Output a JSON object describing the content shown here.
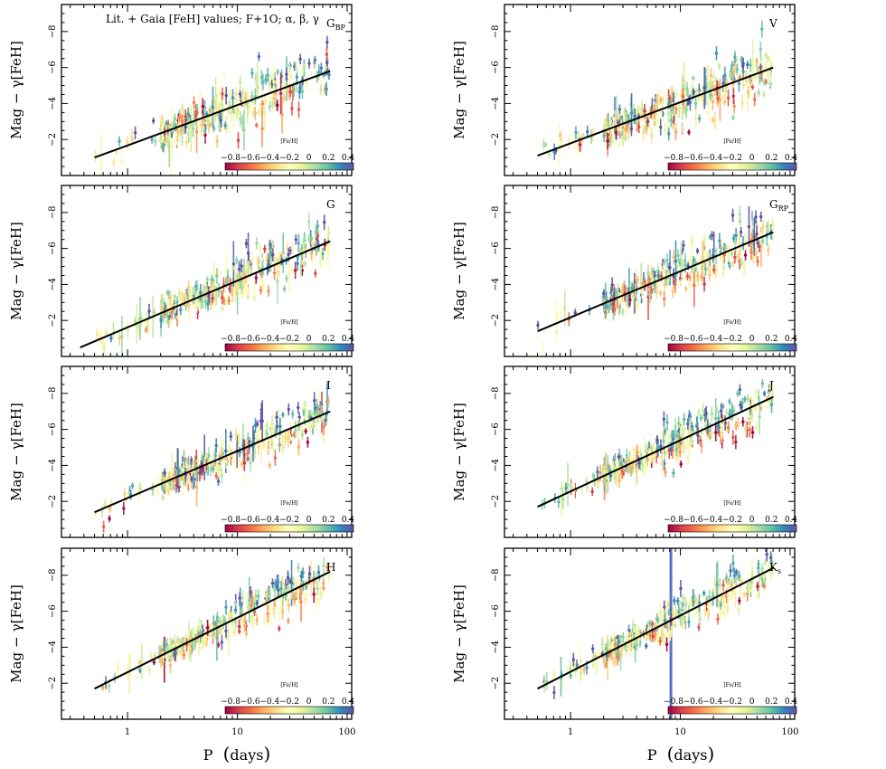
{
  "figure_title": "Lit. + Gaia [FeH] values; F+1O;  α,  β,  γ",
  "xlabel_main": "P",
  "xlabel_unit": "days",
  "ylabel_left": "Mag",
  "ylabel_minus": "−",
  "ylabel_right": "γ[FeH]",
  "colorbar": {
    "label": "[Fe/H]",
    "ticks": [
      "−0.8",
      "−0.6",
      "−0.4",
      "−0.2",
      "0",
      "0.2",
      "0.4"
    ],
    "stops": [
      "#9e0142",
      "#d53e4f",
      "#f46d43",
      "#fdae61",
      "#fee08b",
      "#ffffbf",
      "#e6f598",
      "#abdda4",
      "#66c2a5",
      "#3288bd",
      "#5e4fa2"
    ]
  },
  "chart_data": [
    {
      "type": "scatter",
      "band": "G",
      "sub": "BP",
      "xscale": "log",
      "xlim": [
        0.25,
        110
      ],
      "ylim": [
        0,
        9.5
      ],
      "yaxis_inverted": true,
      "yticks": [
        2,
        4,
        6,
        8
      ],
      "ytick_labels": [
        "−2",
        "−4",
        "−6",
        "−8"
      ],
      "xticks": [
        1,
        10,
        100
      ],
      "xtick_labels": [
        "1",
        "10",
        "100"
      ],
      "fit": {
        "x": [
          0.5,
          70
        ],
        "y": [
          1.0,
          5.8
        ]
      },
      "scatter": 0.55
    },
    {
      "type": "scatter",
      "band": "V",
      "sub": "",
      "xscale": "log",
      "xlim": [
        0.25,
        110
      ],
      "ylim": [
        0,
        9.5
      ],
      "yaxis_inverted": true,
      "yticks": [
        2,
        4,
        6,
        8
      ],
      "ytick_labels": [
        "−2",
        "−4",
        "−6",
        "−8"
      ],
      "xticks": [
        1,
        10,
        100
      ],
      "xtick_labels": [
        "1",
        "10",
        "100"
      ],
      "fit": {
        "x": [
          0.5,
          70
        ],
        "y": [
          1.1,
          6.0
        ]
      },
      "scatter": 0.55
    },
    {
      "type": "scatter",
      "band": "G",
      "sub": "",
      "xscale": "log",
      "xlim": [
        0.25,
        110
      ],
      "ylim": [
        0,
        9.5
      ],
      "yaxis_inverted": true,
      "yticks": [
        2,
        4,
        6,
        8
      ],
      "ytick_labels": [
        "−2",
        "−4",
        "−6",
        "−8"
      ],
      "xticks": [
        1,
        10,
        100
      ],
      "xtick_labels": [
        "1",
        "10",
        "100"
      ],
      "fit": {
        "x": [
          0.37,
          70
        ],
        "y": [
          0.5,
          6.4
        ]
      },
      "scatter": 0.5
    },
    {
      "type": "scatter",
      "band": "G",
      "sub": "RP",
      "xscale": "log",
      "xlim": [
        0.25,
        110
      ],
      "ylim": [
        0,
        9.5
      ],
      "yaxis_inverted": true,
      "yticks": [
        2,
        4,
        6,
        8
      ],
      "ytick_labels": [
        "−2",
        "−4",
        "−6",
        "−8"
      ],
      "xticks": [
        1,
        10,
        100
      ],
      "xtick_labels": [
        "1",
        "10",
        "100"
      ],
      "fit": {
        "x": [
          0.5,
          70
        ],
        "y": [
          1.4,
          6.9
        ]
      },
      "scatter": 0.45
    },
    {
      "type": "scatter",
      "band": "I",
      "sub": "",
      "xscale": "log",
      "xlim": [
        0.25,
        110
      ],
      "ylim": [
        0,
        9.5
      ],
      "yaxis_inverted": true,
      "yticks": [
        2,
        4,
        6,
        8
      ],
      "ytick_labels": [
        "−2",
        "−4",
        "−6",
        "−8"
      ],
      "xticks": [
        1,
        10,
        100
      ],
      "xtick_labels": [
        "1",
        "10",
        "100"
      ],
      "fit": {
        "x": [
          0.5,
          70
        ],
        "y": [
          1.4,
          7.0
        ]
      },
      "scatter": 0.45
    },
    {
      "type": "scatter",
      "band": "J",
      "sub": "",
      "xscale": "log",
      "xlim": [
        0.25,
        110
      ],
      "ylim": [
        0,
        9.5
      ],
      "yaxis_inverted": true,
      "yticks": [
        2,
        4,
        6,
        8
      ],
      "ytick_labels": [
        "−2",
        "−4",
        "−6",
        "−8"
      ],
      "xticks": [
        1,
        10,
        100
      ],
      "xtick_labels": [
        "1",
        "10",
        "100"
      ],
      "fit": {
        "x": [
          0.5,
          70
        ],
        "y": [
          1.7,
          7.8
        ]
      },
      "scatter": 0.4
    },
    {
      "type": "scatter",
      "band": "H",
      "sub": "",
      "xscale": "log",
      "xlim": [
        0.25,
        110
      ],
      "ylim": [
        0,
        9.5
      ],
      "yaxis_inverted": true,
      "yticks": [
        2,
        4,
        6,
        8
      ],
      "ytick_labels": [
        "−2",
        "−4",
        "−6",
        "−8"
      ],
      "xticks": [
        1,
        10,
        100
      ],
      "xtick_labels": [
        "1",
        "10",
        "100"
      ],
      "fit": {
        "x": [
          0.5,
          70
        ],
        "y": [
          1.7,
          8.2
        ]
      },
      "scatter": 0.38
    },
    {
      "type": "scatter",
      "band": "K",
      "sub": "s",
      "xscale": "log",
      "xlim": [
        0.25,
        110
      ],
      "ylim": [
        0,
        9.5
      ],
      "yaxis_inverted": true,
      "yticks": [
        2,
        4,
        6,
        8
      ],
      "ytick_labels": [
        "−2",
        "−4",
        "−6",
        "−8"
      ],
      "xticks": [
        1,
        10,
        100
      ],
      "xtick_labels": [
        "1",
        "10",
        "100"
      ],
      "fit": {
        "x": [
          0.5,
          70
        ],
        "y": [
          1.7,
          8.4
        ]
      },
      "scatter": 0.38,
      "vertical_bar_x": 8.2
    }
  ]
}
